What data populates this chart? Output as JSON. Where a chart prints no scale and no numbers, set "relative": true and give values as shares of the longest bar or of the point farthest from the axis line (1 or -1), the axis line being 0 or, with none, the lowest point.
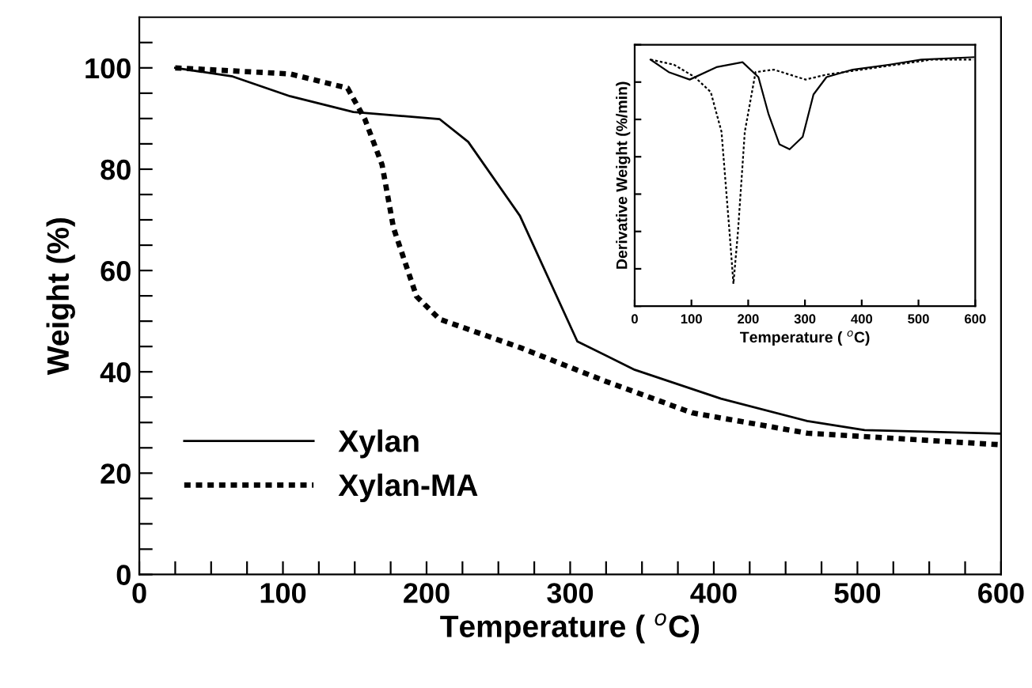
{
  "chart_data": [
    {
      "type": "line",
      "xlabel": "Temperature ( $^{o}$C)",
      "ylabel": "Weight (%)",
      "xlim": [
        0,
        600
      ],
      "ylim": [
        0,
        110
      ],
      "xticks": [
        0,
        {
          "value": 25,
          "label": null
        },
        {
          "value": 50,
          "label": null
        },
        {
          "value": 75,
          "label": null
        },
        100,
        {
          "value": 125,
          "label": null
        },
        {
          "value": 150,
          "label": null
        },
        {
          "value": 175,
          "label": null
        },
        200,
        {
          "value": 225,
          "label": null
        },
        {
          "value": 250,
          "label": null
        },
        {
          "value": 275,
          "label": null
        },
        300,
        {
          "value": 325,
          "label": null
        },
        {
          "value": 350,
          "label": null
        },
        {
          "value": 375,
          "label": null
        },
        400,
        {
          "value": 425,
          "label": null
        },
        {
          "value": 450,
          "label": null
        },
        {
          "value": 475,
          "label": null
        },
        500,
        {
          "value": 525,
          "label": null
        },
        {
          "value": 550,
          "label": null
        },
        {
          "value": 575,
          "label": null
        },
        600
      ],
      "yticks": [
        0,
        {
          "value": 5,
          "label": null
        },
        {
          "value": 10,
          "label": null
        },
        {
          "value": 15,
          "label": null
        },
        20,
        {
          "value": 25,
          "label": null
        },
        {
          "value": 30,
          "label": null
        },
        {
          "value": 35,
          "label": null
        },
        40,
        {
          "value": 45,
          "label": null
        },
        {
          "value": 50,
          "label": null
        },
        {
          "value": 55,
          "label": null
        },
        60,
        {
          "value": 65,
          "label": null
        },
        {
          "value": 70,
          "label": null
        },
        {
          "value": 75,
          "label": null
        },
        80,
        {
          "value": 85,
          "label": null
        },
        {
          "value": 90,
          "label": null
        },
        {
          "value": 95,
          "label": null
        },
        100,
        {
          "value": 105,
          "label": null
        }
      ],
      "legend": "bottom left",
      "grid": false,
      "marker": "none",
      "series": [
        {
          "name": "Xylan",
          "color": "#000000",
          "line_style": "solid",
          "x": [
            25,
            65,
            105,
            149,
            209,
            229,
            265,
            305,
            345,
            405,
            465,
            505,
            600
          ],
          "values": [
            100,
            98.3,
            94.4,
            91.3,
            89.9,
            85.4,
            70.8,
            46,
            40.4,
            34.7,
            30.3,
            28.5,
            27.8
          ]
        },
        {
          "name": "Xylan-MA",
          "color": "#000000",
          "line_style": "dotted",
          "x": [
            25,
            105,
            145,
            157,
            169,
            177,
            193,
            209,
            265,
            325,
            385,
            465,
            600
          ],
          "values": [
            100,
            98.8,
            96,
            89.9,
            80.9,
            68.4,
            54.9,
            50.4,
            44.8,
            38.1,
            31.9,
            27.9,
            25.6
          ]
        }
      ]
    },
    {
      "type": "line",
      "relative": true,
      "xlabel": "Temperature ( $^{o}$C)",
      "ylabel": "Derivative Weight (%/min)",
      "xlim": [
        0,
        600
      ],
      "xticks": [
        0,
        100,
        200,
        300,
        400,
        500,
        600
      ],
      "tick_labels": "x",
      "grid": false,
      "marker": "none",
      "series": [
        {
          "color": "#000000",
          "line_style": "solid",
          "x": [
            28,
            60,
            97,
            144,
            190,
            218,
            236,
            255,
            273,
            296,
            315,
            338,
            384,
            449,
            505,
            597
          ],
          "values": [
            0.99,
            0.94,
            0.91,
            0.96,
            0.98,
            0.92,
            0.77,
            0.65,
            0.63,
            0.68,
            0.85,
            0.92,
            0.95,
            0.97,
            0.99,
            1.0
          ]
        },
        {
          "color": "#000000",
          "line_style": "dotted",
          "x": [
            28,
            69,
            106,
            134,
            153,
            167,
            174,
            182,
            194,
            213,
            245,
            301,
            338,
            431,
            523,
            597
          ],
          "values": [
            0.99,
            0.97,
            0.92,
            0.86,
            0.7,
            0.3,
            0.09,
            0.3,
            0.7,
            0.94,
            0.95,
            0.91,
            0.93,
            0.96,
            0.99,
            0.99
          ]
        }
      ]
    }
  ]
}
